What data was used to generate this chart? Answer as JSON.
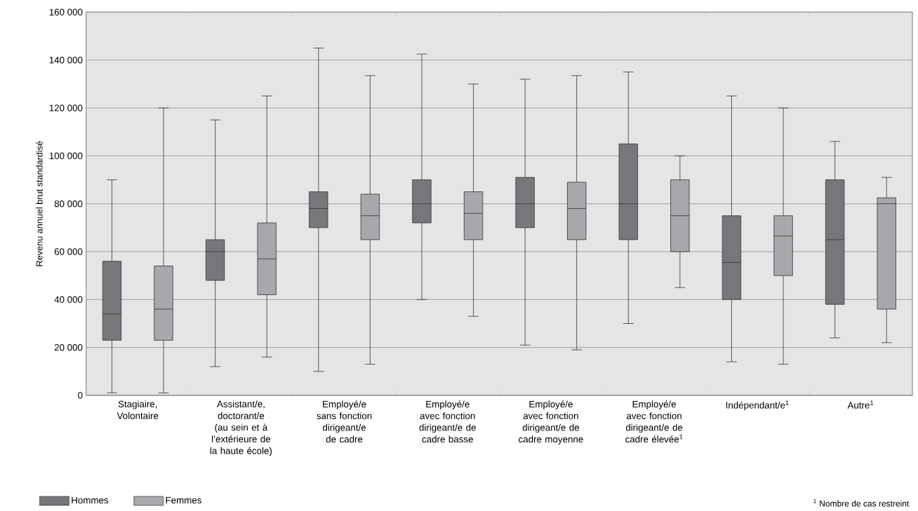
{
  "chart_data": {
    "type": "box",
    "ylabel": "Revenu annuel brut standardisé",
    "categories": [
      "Stagiaire, Volontaire",
      "Assistant/e, doctorant/e (au sein et à l’extérieure de la haute école)",
      "Employé/e sans fonction dirigeant/e de cadre",
      "Employé/e avec fonction dirigeant/e de cadre basse",
      "Employé/e avec fonction dirigeant/e de cadre moyenne",
      "Employé/e avec fonction dirigeant/e de cadre élevée$^{1}$",
      "Indépendant/e$^{1}$",
      "Autre$^{1}$"
    ],
    "series": [
      {
        "name": "Hommes",
        "color": "#76777a",
        "boxes": [
          {
            "low": 1000,
            "q1": 23000,
            "median": 34000,
            "q3": 56000,
            "high": 90000
          },
          {
            "low": 12000,
            "q1": 48000,
            "median": 60000,
            "q3": 65000,
            "high": 115000
          },
          {
            "low": 10000,
            "q1": 70000,
            "median": 78000,
            "q3": 85000,
            "high": 145000
          },
          {
            "low": 40000,
            "q1": 72000,
            "median": 80000,
            "q3": 90000,
            "high": 142500
          },
          {
            "low": 21000,
            "q1": 70000,
            "median": 80000,
            "q3": 91000,
            "high": 132000
          },
          {
            "low": 30000,
            "q1": 65000,
            "median": 80000,
            "q3": 105000,
            "high": 135000
          },
          {
            "low": 14000,
            "q1": 40000,
            "median": 55500,
            "q3": 75000,
            "high": 125000
          },
          {
            "low": 24000,
            "q1": 38000,
            "median": 65000,
            "q3": 90000,
            "high": 106000
          }
        ]
      },
      {
        "name": "Femmes",
        "color": "#a7a8ab",
        "boxes": [
          {
            "low": 1000,
            "q1": 23000,
            "median": 36000,
            "q3": 54000,
            "high": 120000
          },
          {
            "low": 16000,
            "q1": 42000,
            "median": 57000,
            "q3": 72000,
            "high": 125000
          },
          {
            "low": 13000,
            "q1": 65000,
            "median": 75000,
            "q3": 84000,
            "high": 133500
          },
          {
            "low": 33000,
            "q1": 65000,
            "median": 76000,
            "q3": 85000,
            "high": 130000
          },
          {
            "low": 19000,
            "q1": 65000,
            "median": 78000,
            "q3": 89000,
            "high": 133500
          },
          {
            "low": 45000,
            "q1": 60000,
            "median": 75000,
            "q3": 90000,
            "high": 100000
          },
          {
            "low": 13000,
            "q1": 50000,
            "median": 66500,
            "q3": 75000,
            "high": 120000
          },
          {
            "low": 22000,
            "q1": 36000,
            "median": 80000,
            "q3": 82500,
            "high": 91000
          }
        ]
      }
    ],
    "ylim": [
      0,
      160000
    ],
    "yticks": [
      {
        "value": 0,
        "label": "0"
      },
      {
        "value": 20000,
        "label": "20 000"
      },
      {
        "value": 40000,
        "label": "40 000"
      },
      {
        "value": 60000,
        "label": "60 000"
      },
      {
        "value": 80000,
        "label": "80 000"
      },
      {
        "value": 100000,
        "label": "100 000"
      },
      {
        "value": 120000,
        "label": "120 000"
      },
      {
        "value": 140000,
        "label": "140 000"
      },
      {
        "value": 160000,
        "label": "160 000"
      }
    ],
    "grid": "y",
    "legend": "bottom left",
    "annotations": [
      "$^{1}$ Nombre de cas restreint"
    ]
  }
}
